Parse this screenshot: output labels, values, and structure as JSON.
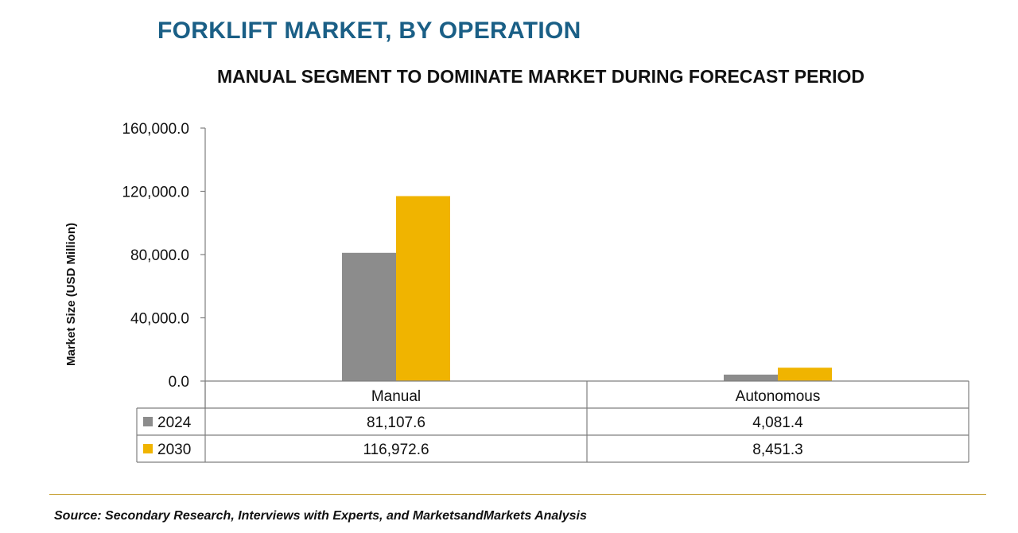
{
  "header": {
    "title": "FORKLIFT MARKET, BY OPERATION",
    "subtitle": "MANUAL SEGMENT TO DOMINATE MARKET DURING FORECAST PERIOD"
  },
  "footer": {
    "source": "Source: Secondary Research, Interviews with Experts, and MarketsandMarkets Analysis"
  },
  "colors": {
    "title": "#1a5f86",
    "series_2024": "#8c8c8c",
    "series_2030": "#f0b400",
    "footer_rule": "#c9a43a"
  },
  "chart_data": {
    "type": "bar",
    "title": "MANUAL SEGMENT TO DOMINATE MARKET DURING FORECAST PERIOD",
    "xlabel": "",
    "ylabel": "Market Size (USD Million)",
    "categories": [
      "Manual",
      "Autonomous"
    ],
    "series": [
      {
        "name": "2024",
        "values": [
          81107.6,
          4081.4
        ],
        "labels": [
          "81,107.6",
          "4,081.4"
        ],
        "color": "#8c8c8c"
      },
      {
        "name": "2030",
        "values": [
          116972.6,
          8451.3
        ],
        "labels": [
          "116,972.6",
          "8,451.3"
        ],
        "color": "#f0b400"
      }
    ],
    "ylim": [
      0,
      160000
    ],
    "yticks": [
      0,
      40000,
      80000,
      120000,
      160000
    ],
    "ytick_labels": [
      "0.0",
      "40,000.0",
      "80,000.0",
      "120,000.0",
      "160,000.0"
    ],
    "grid": false,
    "legend": "data-table"
  }
}
